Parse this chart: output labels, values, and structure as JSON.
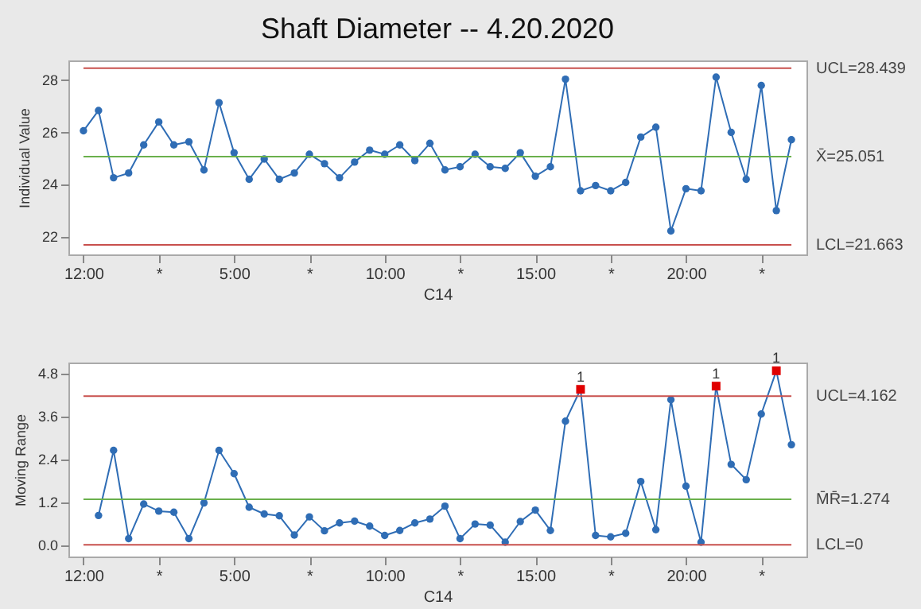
{
  "chart_data": [
    {
      "type": "line",
      "title": "Shaft Diameter -- 4.20.2020",
      "xlabel": "C14",
      "ylabel": "Individual Value",
      "color": "#2f6db5",
      "marker": "circle",
      "categories": [
        "12:00",
        null,
        null,
        null,
        null,
        "*",
        null,
        null,
        null,
        null,
        "5:00",
        null,
        null,
        null,
        null,
        "*",
        null,
        null,
        null,
        null,
        "10:00",
        null,
        null,
        null,
        null,
        "*",
        null,
        null,
        null,
        null,
        "15:00",
        null,
        null,
        null,
        null,
        "*",
        null,
        null,
        null,
        null,
        "20:00",
        null,
        null,
        null,
        null,
        "*",
        null,
        null
      ],
      "values": [
        26.04,
        26.82,
        24.24,
        24.42,
        25.5,
        26.38,
        25.5,
        25.62,
        24.54,
        27.12,
        25.2,
        24.18,
        24.96,
        24.18,
        24.42,
        25.14,
        24.78,
        24.24,
        24.84,
        25.3,
        25.14,
        25.5,
        24.9,
        25.56,
        24.54,
        24.66,
        25.14,
        24.66,
        24.6,
        25.2,
        24.3,
        24.66,
        28.02,
        23.74,
        23.94,
        23.74,
        24.06,
        25.8,
        26.18,
        22.2,
        23.82,
        23.74,
        28.1,
        25.98,
        24.18,
        27.78,
        22.98,
        25.7
      ],
      "ref_lines": [
        {
          "axis": "y",
          "value": 28.439,
          "label": "UCL=28.439",
          "color": "#c8504d"
        },
        {
          "axis": "y",
          "value": 25.051,
          "label": "X̄=25.051",
          "color": "#6ab04c"
        },
        {
          "axis": "y",
          "value": 21.663,
          "label": "LCL=21.663",
          "color": "#c8504d"
        }
      ],
      "ylim": [
        21.3,
        28.74
      ],
      "yticks": [
        22,
        24,
        26,
        28
      ]
    },
    {
      "type": "line",
      "xlabel": "C14",
      "ylabel": "Moving Range",
      "marker": "circle",
      "categories": [
        "12:00",
        null,
        null,
        null,
        null,
        "*",
        null,
        null,
        null,
        null,
        "5:00",
        null,
        null,
        null,
        null,
        "*",
        null,
        null,
        null,
        null,
        "10:00",
        null,
        null,
        null,
        null,
        "*",
        null,
        null,
        null,
        null,
        "15:00",
        null,
        null,
        null,
        null,
        "*",
        null,
        null,
        null,
        null,
        "20:00",
        null,
        null,
        null,
        null,
        "*",
        null,
        null
      ],
      "series": [
        {
          "color": "#2f6db5",
          "values": [
            null,
            0.82,
            2.64,
            0.17,
            1.14,
            0.94,
            0.91,
            0.17,
            1.17,
            2.64,
            1.99,
            1.05,
            0.86,
            0.81,
            0.27,
            0.78,
            0.39,
            0.61,
            0.66,
            0.52,
            0.26,
            0.4,
            0.61,
            0.72,
            1.08,
            0.17,
            0.58,
            0.55,
            0.07,
            0.65,
            0.97,
            0.4,
            3.46,
            4.35,
            0.26,
            0.22,
            0.32,
            1.77,
            0.42,
            4.06,
            1.64,
            0.07,
            4.44,
            2.25,
            1.82,
            3.66,
            4.87,
            2.8
          ]
        },
        {
          "type": "scatter",
          "marker": "square",
          "color": "#e00000",
          "values": [
            null,
            null,
            null,
            null,
            null,
            null,
            null,
            null,
            null,
            null,
            null,
            null,
            null,
            null,
            null,
            null,
            null,
            null,
            null,
            null,
            null,
            null,
            null,
            null,
            null,
            null,
            null,
            null,
            null,
            null,
            null,
            null,
            null,
            4.35,
            null,
            null,
            null,
            null,
            null,
            null,
            null,
            null,
            4.44,
            null,
            null,
            null,
            4.87,
            null
          ]
        }
      ],
      "annotations": [
        {
          "text": "1",
          "y": 4.35
        },
        {
          "text": "1",
          "y": 4.44
        },
        {
          "text": "1",
          "y": 4.87
        }
      ],
      "ref_lines": [
        {
          "axis": "y",
          "value": 4.162,
          "label": "UCL=4.162",
          "color": "#c8504d"
        },
        {
          "axis": "y",
          "value": 1.274,
          "label": "M̄R̄=1.274",
          "color": "#6ab04c"
        },
        {
          "axis": "y",
          "value": 0,
          "label": "LCL=0",
          "color": "#c8504d"
        }
      ],
      "ylim": [
        -0.33,
        5.1
      ],
      "yticks": [
        {
          "value": 0,
          "label": "0.0"
        },
        1.2,
        2.4,
        3.6,
        4.8
      ]
    }
  ]
}
